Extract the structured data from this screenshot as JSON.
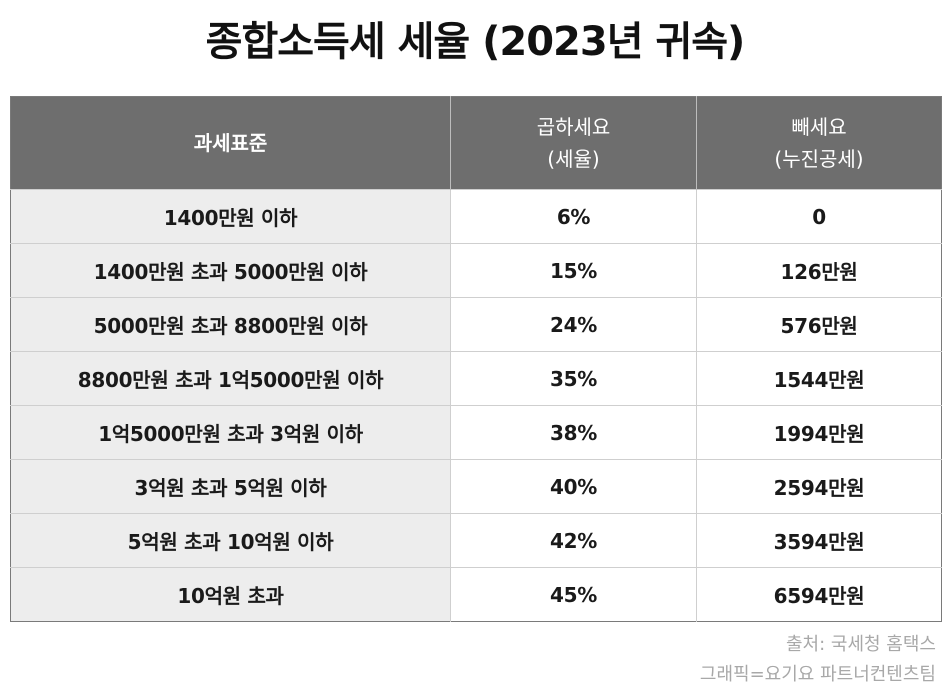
{
  "title": "종합소득세 세율 (2023년 귀속)",
  "table": {
    "headers": {
      "range": "과세표준",
      "rate_main": "곱하세요",
      "rate_sub": "(세율)",
      "deduction_main": "빼세요",
      "deduction_sub": "(누진공세)"
    },
    "rows": [
      {
        "range": "1400만원 이하",
        "rate": "6%",
        "deduction": "0"
      },
      {
        "range": "1400만원 초과 5000만원 이하",
        "rate": "15%",
        "deduction": "126만원"
      },
      {
        "range": "5000만원 초과 8800만원 이하",
        "rate": "24%",
        "deduction": "576만원"
      },
      {
        "range": "8800만원 초과 1억5000만원 이하",
        "rate": "35%",
        "deduction": "1544만원"
      },
      {
        "range": "1억5000만원 초과 3억원 이하",
        "rate": "38%",
        "deduction": "1994만원"
      },
      {
        "range": "3억원 초과 5억원 이하",
        "rate": "40%",
        "deduction": "2594만원"
      },
      {
        "range": "5억원 초과 10억원 이하",
        "rate": "42%",
        "deduction": "3594만원"
      },
      {
        "range": "10억원 초과",
        "rate": "45%",
        "deduction": "6594만원"
      }
    ]
  },
  "credits": {
    "source": "출처: 국세청 홈택스",
    "graphic": "그래픽=요기요 파트너컨텐츠팀"
  }
}
